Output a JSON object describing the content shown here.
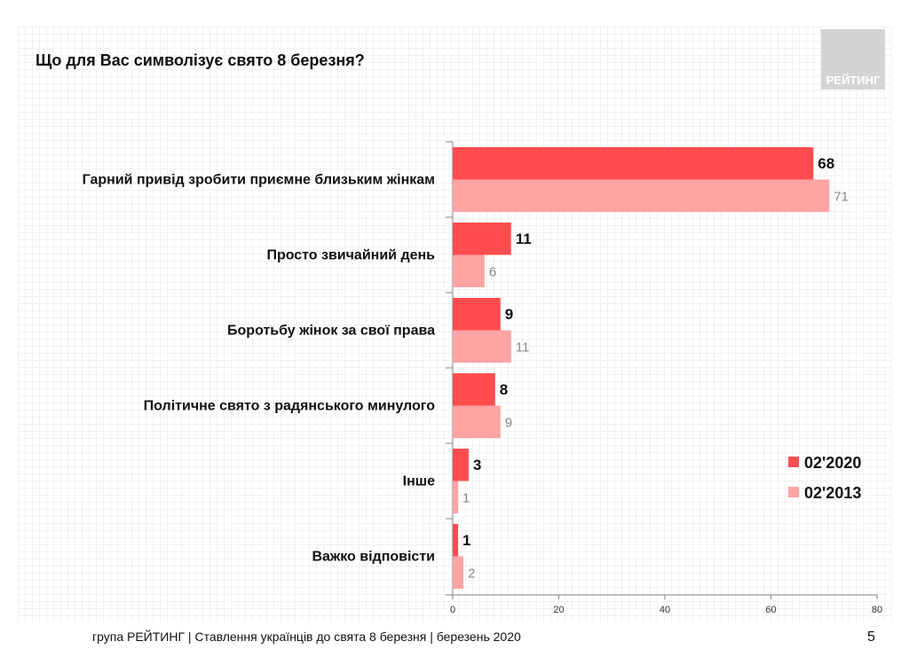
{
  "title": "Що для Вас символізує свято 8 березня?",
  "logo": "РЕЙТИНГ",
  "footer": "група РЕЙТИНГ | Ставлення українців до свята 8 березня  | березень 2020",
  "page_number": "5",
  "chart_data": {
    "type": "bar",
    "orientation": "horizontal",
    "categories": [
      "Гарний привід зробити приємне близьким жінкам",
      "Просто звичайний день",
      "Боротьбу жінок за свої права",
      "Політичне свято з радянського минулого",
      "Інше",
      "Важко відповісти"
    ],
    "series": [
      {
        "name": "02'2020",
        "values": [
          68,
          11,
          9,
          8,
          3,
          1
        ],
        "color": "#ff4d4f"
      },
      {
        "name": "02'2013",
        "values": [
          71,
          6,
          11,
          9,
          1,
          2
        ],
        "color": "#ffa3a3"
      }
    ],
    "xlim": [
      0,
      80
    ],
    "xticks": [
      "0",
      "20",
      "40",
      "60",
      "80"
    ],
    "legend": "right"
  }
}
